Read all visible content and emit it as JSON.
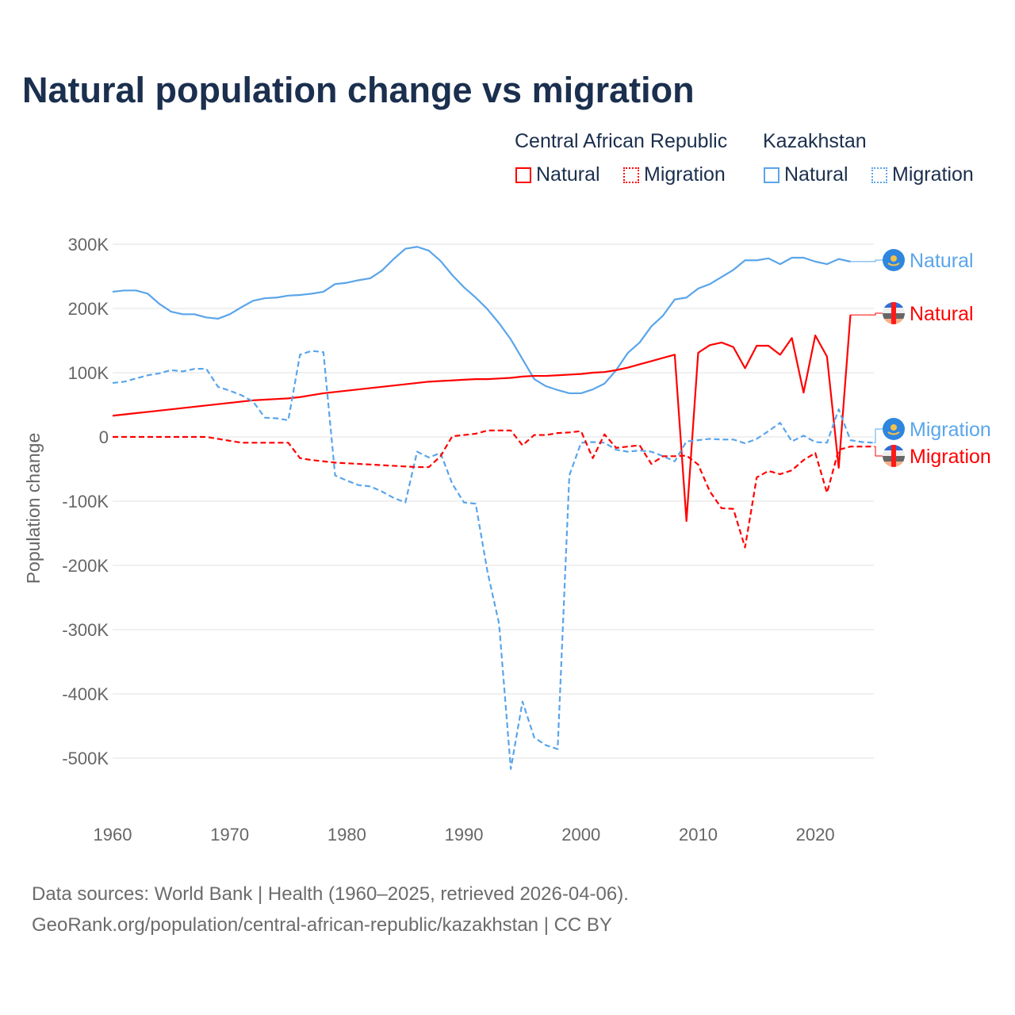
{
  "chart_data": {
    "type": "line",
    "title": "Natural population change vs migration",
    "xlabel": "",
    "ylabel": "Population change",
    "xlim": [
      1960,
      2025
    ],
    "ylim": [
      -600000,
      300000
    ],
    "x_ticks": [
      1960,
      1970,
      1980,
      1990,
      2000,
      2010,
      2020
    ],
    "x_tick_labels": [
      "1960",
      "1970",
      "1980",
      "1990",
      "2000",
      "2010",
      "2020"
    ],
    "y_ticks": [
      300000,
      200000,
      100000,
      0,
      -100000,
      -200000,
      -300000,
      -400000,
      -500000
    ],
    "y_tick_labels": [
      "300K",
      "200K",
      "100K",
      "0",
      "-100K",
      "-200K",
      "-300K",
      "-400K",
      "-500K"
    ],
    "grid": true,
    "legend_placement": "top-right",
    "legend": {
      "groups": [
        "Central African Republic",
        "Kazakhstan"
      ],
      "items": [
        "Natural",
        "Migration",
        "Natural",
        "Migration"
      ]
    },
    "series": [
      {
        "name": "Kazakhstan Natural",
        "country": "Kazakhstan",
        "kind": "Natural",
        "end_label": "Natural",
        "color": "#5aa5ea",
        "dash": false,
        "start_year": 1960,
        "values": [
          226000,
          228000,
          228000,
          223000,
          207000,
          195000,
          191000,
          191000,
          186000,
          184000,
          191000,
          202000,
          212000,
          216000,
          217000,
          220000,
          221000,
          223000,
          226000,
          238000,
          240000,
          244000,
          247000,
          259000,
          277000,
          293000,
          296000,
          290000,
          274000,
          252000,
          233000,
          217000,
          199000,
          177000,
          152000,
          121000,
          90000,
          79000,
          73000,
          68000,
          68000,
          74000,
          83000,
          104000,
          131000,
          147000,
          172000,
          189000,
          214000,
          217000,
          231000,
          238000,
          249000,
          260000,
          275000,
          275000,
          278000,
          269000,
          279000,
          279000,
          273000,
          269000,
          277000,
          273000
        ]
      },
      {
        "name": "Central African Republic Natural",
        "country": "Central African Republic",
        "kind": "Natural",
        "end_label": "Natural",
        "color": "#ff0000",
        "dash": false,
        "start_year": 1960,
        "values": [
          33000,
          35000,
          37000,
          39000,
          41000,
          43000,
          45000,
          47000,
          49000,
          51000,
          53000,
          55000,
          57000,
          58000,
          59000,
          60000,
          62000,
          65000,
          68000,
          70000,
          72000,
          74000,
          76000,
          78000,
          80000,
          82000,
          84000,
          86000,
          87000,
          88000,
          89000,
          90000,
          90000,
          91000,
          92000,
          94000,
          95000,
          95000,
          96000,
          97000,
          98000,
          100000,
          101000,
          104000,
          108000,
          113000,
          118000,
          123000,
          128000,
          -131000,
          131000,
          143000,
          147000,
          140000,
          107000,
          142000,
          142000,
          128000,
          154000,
          69000,
          158000,
          125000,
          -48000,
          190000
        ]
      },
      {
        "name": "Kazakhstan Migration",
        "country": "Kazakhstan",
        "kind": "Migration",
        "end_label": "Migration",
        "color": "#5aa5ea",
        "dash": true,
        "start_year": 1960,
        "values": [
          84000,
          86000,
          91000,
          96000,
          99000,
          104000,
          102000,
          106000,
          106000,
          78000,
          72000,
          65000,
          55000,
          30000,
          29000,
          26000,
          128000,
          134000,
          132000,
          -60000,
          -68000,
          -75000,
          -77000,
          -85000,
          -95000,
          -102000,
          -23000,
          -32000,
          -25000,
          -73000,
          -102000,
          -104000,
          -209000,
          -291000,
          -517000,
          -412000,
          -468000,
          -480000,
          -486000,
          -60000,
          -9000,
          -8000,
          -9000,
          -20000,
          -23000,
          -21000,
          -23000,
          -30000,
          -38000,
          -7000,
          -5000,
          -3000,
          -4000,
          -4000,
          -10000,
          -3000,
          9000,
          22000,
          -7000,
          2000,
          -8000,
          -9000,
          43000,
          -5000,
          -8000,
          -9000
        ]
      },
      {
        "name": "Central African Republic Migration",
        "country": "Central African Republic",
        "kind": "Migration",
        "end_label": "Migration",
        "color": "#ff0000",
        "dash": true,
        "start_year": 1960,
        "values": [
          0,
          0,
          0,
          0,
          0,
          0,
          0,
          0,
          0,
          -3000,
          -6000,
          -9000,
          -9000,
          -9000,
          -9000,
          -9000,
          -33000,
          -36000,
          -38000,
          -40000,
          -41000,
          -42000,
          -43000,
          -44000,
          -45000,
          -46000,
          -47000,
          -47000,
          -30000,
          1000,
          3000,
          5000,
          10000,
          10000,
          10000,
          -13000,
          3000,
          3000,
          6000,
          7000,
          9000,
          -33000,
          4000,
          -17000,
          -15000,
          -13000,
          -42000,
          -30000,
          -30000,
          -29000,
          -43000,
          -85000,
          -111000,
          -112000,
          -172000,
          -63000,
          -53000,
          -58000,
          -52000,
          -36000,
          -25000,
          -87000,
          -20000,
          -15000,
          -15000,
          -15000
        ]
      }
    ]
  },
  "footer": {
    "line1": "Data sources: World Bank | Health (1960–2025, retrieved 2026-04-06).",
    "line2": "GeoRank.org/population/central-african-republic/kazakhstan | CC BY"
  }
}
